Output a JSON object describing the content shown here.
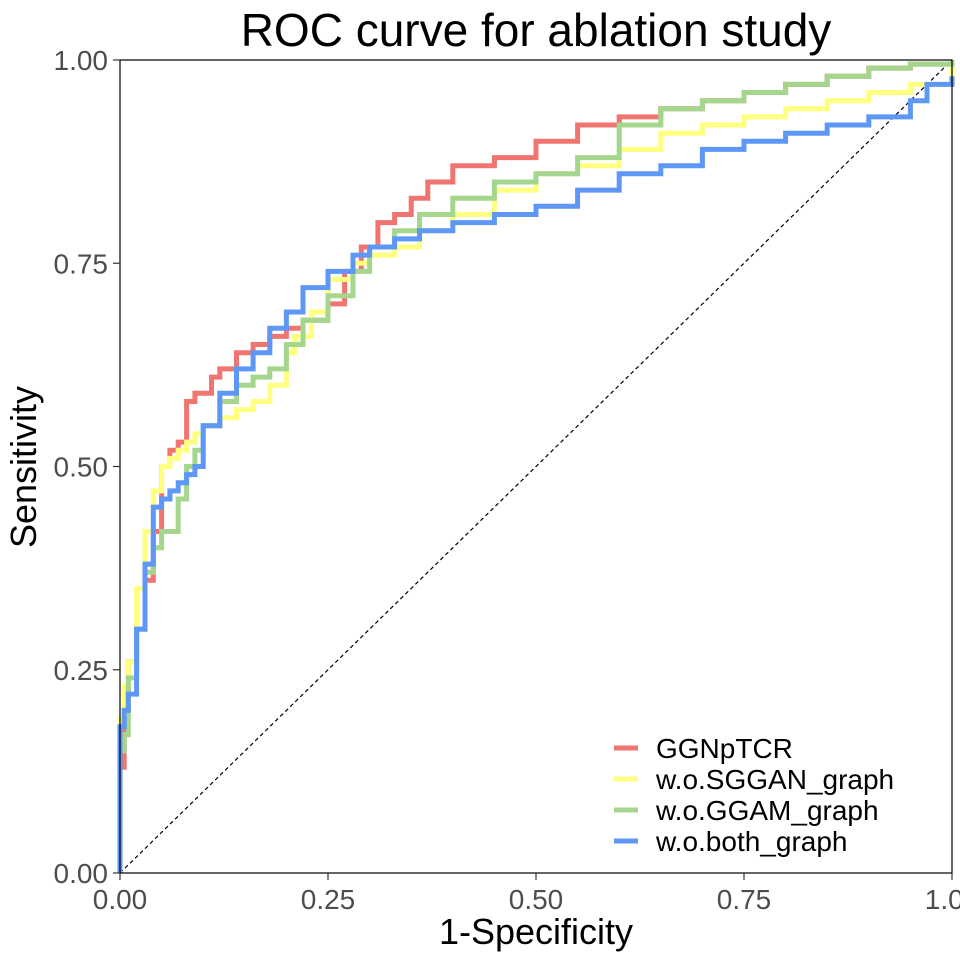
{
  "chart_data": {
    "type": "line",
    "title": "ROC curve for ablation study",
    "xlabel": "1-Specificity",
    "ylabel": "Sensitivity",
    "xlim": [
      0,
      1
    ],
    "ylim": [
      0,
      1
    ],
    "x_ticks": [
      "0.00",
      "0.25",
      "0.50",
      "0.75",
      "1.00"
    ],
    "y_ticks": [
      "0.00",
      "0.25",
      "0.50",
      "0.75",
      "1.00"
    ],
    "grid": false,
    "legend_position": "bottom-right",
    "reference_line": {
      "x": [
        0,
        1
      ],
      "y": [
        0,
        1
      ],
      "style": "dashed",
      "color": "#000000"
    },
    "series": [
      {
        "name": "GGNpTCR",
        "color": "#F07470",
        "x": [
          0,
          0,
          0.005,
          0.01,
          0.02,
          0.03,
          0.04,
          0.05,
          0.06,
          0.07,
          0.08,
          0.09,
          0.11,
          0.12,
          0.14,
          0.16,
          0.18,
          0.2,
          0.22,
          0.25,
          0.27,
          0.29,
          0.31,
          0.33,
          0.35,
          0.37,
          0.4,
          0.45,
          0.5,
          0.55,
          0.6,
          0.65,
          0.7,
          0.75,
          0.8,
          0.85,
          0.9,
          0.95,
          1.0
        ],
        "y": [
          0,
          0.13,
          0.2,
          0.26,
          0.3,
          0.36,
          0.42,
          0.5,
          0.52,
          0.53,
          0.58,
          0.59,
          0.61,
          0.62,
          0.64,
          0.65,
          0.66,
          0.67,
          0.68,
          0.7,
          0.74,
          0.77,
          0.8,
          0.81,
          0.83,
          0.85,
          0.87,
          0.88,
          0.9,
          0.92,
          0.93,
          0.94,
          0.95,
          0.96,
          0.97,
          0.98,
          0.99,
          0.995,
          1.0
        ]
      },
      {
        "name": "w.o.SGGAN_graph",
        "color": "#FFFF80",
        "x": [
          0,
          0,
          0.005,
          0.01,
          0.02,
          0.03,
          0.04,
          0.05,
          0.06,
          0.07,
          0.08,
          0.09,
          0.1,
          0.12,
          0.14,
          0.16,
          0.18,
          0.2,
          0.21,
          0.23,
          0.25,
          0.28,
          0.3,
          0.33,
          0.36,
          0.4,
          0.45,
          0.5,
          0.55,
          0.6,
          0.65,
          0.7,
          0.75,
          0.8,
          0.85,
          0.9,
          0.95,
          1.0
        ],
        "y": [
          0,
          0.19,
          0.23,
          0.26,
          0.35,
          0.42,
          0.47,
          0.5,
          0.51,
          0.52,
          0.53,
          0.54,
          0.55,
          0.56,
          0.57,
          0.58,
          0.6,
          0.64,
          0.66,
          0.69,
          0.73,
          0.75,
          0.76,
          0.77,
          0.79,
          0.81,
          0.84,
          0.86,
          0.87,
          0.89,
          0.91,
          0.92,
          0.93,
          0.94,
          0.95,
          0.96,
          0.97,
          1.0
        ]
      },
      {
        "name": "w.o.GGAM_graph",
        "color": "#A5D68D",
        "x": [
          0,
          0,
          0.005,
          0.01,
          0.02,
          0.03,
          0.04,
          0.05,
          0.065,
          0.07,
          0.08,
          0.09,
          0.1,
          0.12,
          0.14,
          0.16,
          0.18,
          0.2,
          0.22,
          0.25,
          0.28,
          0.3,
          0.33,
          0.36,
          0.4,
          0.45,
          0.5,
          0.55,
          0.6,
          0.65,
          0.7,
          0.75,
          0.8,
          0.85,
          0.9,
          0.95,
          1.0
        ],
        "y": [
          0,
          0.15,
          0.17,
          0.24,
          0.3,
          0.37,
          0.4,
          0.42,
          0.42,
          0.46,
          0.5,
          0.52,
          0.55,
          0.58,
          0.6,
          0.61,
          0.62,
          0.65,
          0.68,
          0.71,
          0.74,
          0.77,
          0.79,
          0.81,
          0.83,
          0.85,
          0.86,
          0.88,
          0.92,
          0.94,
          0.95,
          0.96,
          0.97,
          0.98,
          0.99,
          0.995,
          1.0
        ]
      },
      {
        "name": "w.o.both_graph",
        "color": "#5E97F6",
        "x": [
          0,
          0,
          0.005,
          0.01,
          0.02,
          0.03,
          0.04,
          0.05,
          0.06,
          0.07,
          0.08,
          0.09,
          0.1,
          0.12,
          0.14,
          0.16,
          0.18,
          0.2,
          0.22,
          0.25,
          0.28,
          0.3,
          0.33,
          0.36,
          0.4,
          0.45,
          0.5,
          0.55,
          0.6,
          0.65,
          0.7,
          0.75,
          0.8,
          0.85,
          0.9,
          0.95,
          0.97,
          1.0
        ],
        "y": [
          0,
          0.18,
          0.2,
          0.22,
          0.3,
          0.38,
          0.45,
          0.46,
          0.47,
          0.48,
          0.49,
          0.5,
          0.55,
          0.59,
          0.62,
          0.64,
          0.67,
          0.69,
          0.72,
          0.74,
          0.76,
          0.77,
          0.78,
          0.79,
          0.8,
          0.81,
          0.82,
          0.84,
          0.86,
          0.87,
          0.89,
          0.9,
          0.91,
          0.92,
          0.93,
          0.95,
          0.97,
          0.98
        ]
      }
    ]
  }
}
